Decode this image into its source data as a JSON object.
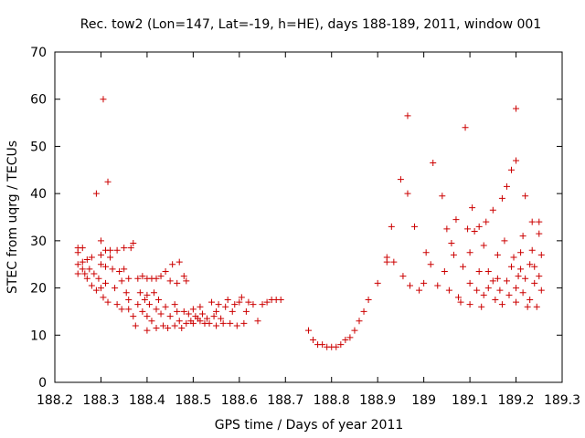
{
  "chart_data": {
    "type": "scatter",
    "title": "Rec. tow2 (Lon=147, Lat=-19, h=HE), days 188-189, 2011, window 001",
    "xlabel": "GPS time / Days of year 2011",
    "ylabel": "STEC from uqrg / TECUs",
    "xlim": [
      188.2,
      189.3
    ],
    "ylim": [
      0,
      70
    ],
    "xticks": [
      188.2,
      188.3,
      188.4,
      188.5,
      188.6,
      188.7,
      188.8,
      188.9,
      189.0,
      189.1,
      189.2,
      189.3
    ],
    "xtick_labels": [
      "188.2",
      "188.3",
      "188.4",
      "188.5",
      "188.6",
      "188.7",
      "188.8",
      "188.9",
      "189",
      "189.1",
      "189.2",
      "189.3"
    ],
    "yticks": [
      0,
      10,
      20,
      30,
      40,
      50,
      60,
      70
    ],
    "ytick_labels": [
      "0",
      "10",
      "20",
      "30",
      "40",
      "50",
      "60",
      "70"
    ],
    "grid": false,
    "legend": false,
    "marker": "+",
    "colors": {
      "points": "#cc0000",
      "axes": "#000000"
    },
    "series": [
      {
        "points": [
          [
            188.25,
            28.5
          ],
          [
            188.25,
            27.5
          ],
          [
            188.25,
            25.0
          ],
          [
            188.25,
            23.0
          ],
          [
            188.26,
            28.5
          ],
          [
            188.26,
            24.0
          ],
          [
            188.26,
            25.5
          ],
          [
            188.265,
            23.0
          ],
          [
            188.27,
            26.0
          ],
          [
            188.27,
            22.0
          ],
          [
            188.275,
            24.0
          ],
          [
            188.28,
            26.5
          ],
          [
            188.28,
            20.5
          ],
          [
            188.285,
            23.0
          ],
          [
            188.29,
            40.0
          ],
          [
            188.29,
            19.5
          ],
          [
            188.295,
            22.0
          ],
          [
            188.3,
            27.0
          ],
          [
            188.3,
            25.0
          ],
          [
            188.3,
            30.0
          ],
          [
            188.3,
            20.0
          ],
          [
            188.305,
            60.0
          ],
          [
            188.305,
            18.0
          ],
          [
            188.31,
            28.0
          ],
          [
            188.31,
            24.5
          ],
          [
            188.31,
            21.0
          ],
          [
            188.315,
            42.5
          ],
          [
            188.315,
            17.0
          ],
          [
            188.32,
            28.0
          ],
          [
            188.32,
            26.5
          ],
          [
            188.325,
            24.0
          ],
          [
            188.33,
            20.0
          ],
          [
            188.335,
            16.5
          ],
          [
            188.335,
            28.0
          ],
          [
            188.34,
            23.5
          ],
          [
            188.345,
            15.5
          ],
          [
            188.345,
            21.5
          ],
          [
            188.35,
            28.5
          ],
          [
            188.35,
            24.0
          ],
          [
            188.355,
            19.0
          ],
          [
            188.36,
            17.5
          ],
          [
            188.36,
            15.5
          ],
          [
            188.36,
            22.0
          ],
          [
            188.365,
            28.5
          ],
          [
            188.37,
            29.5
          ],
          [
            188.37,
            14.0
          ],
          [
            188.375,
            12.0
          ],
          [
            188.38,
            22.0
          ],
          [
            188.38,
            16.5
          ],
          [
            188.385,
            19.0
          ],
          [
            188.39,
            15.0
          ],
          [
            188.39,
            22.5
          ],
          [
            188.395,
            17.5
          ],
          [
            188.4,
            22.0
          ],
          [
            188.4,
            18.5
          ],
          [
            188.4,
            11.0
          ],
          [
            188.4,
            14.0
          ],
          [
            188.405,
            16.5
          ],
          [
            188.41,
            22.0
          ],
          [
            188.41,
            13.0
          ],
          [
            188.415,
            19.0
          ],
          [
            188.42,
            15.5
          ],
          [
            188.42,
            11.5
          ],
          [
            188.42,
            22.0
          ],
          [
            188.425,
            17.5
          ],
          [
            188.43,
            22.5
          ],
          [
            188.43,
            14.5
          ],
          [
            188.435,
            12.0
          ],
          [
            188.44,
            16.0
          ],
          [
            188.44,
            23.5
          ],
          [
            188.445,
            11.5
          ],
          [
            188.45,
            21.5
          ],
          [
            188.45,
            14.0
          ],
          [
            188.455,
            25.0
          ],
          [
            188.46,
            16.5
          ],
          [
            188.46,
            12.0
          ],
          [
            188.465,
            21.0
          ],
          [
            188.465,
            15.0
          ],
          [
            188.47,
            25.5
          ],
          [
            188.47,
            13.0
          ],
          [
            188.475,
            11.5
          ],
          [
            188.48,
            22.5
          ],
          [
            188.48,
            15.0
          ],
          [
            188.485,
            21.5
          ],
          [
            188.485,
            12.5
          ],
          [
            188.49,
            14.5
          ],
          [
            188.495,
            13.0
          ],
          [
            188.5,
            15.5
          ],
          [
            188.5,
            12.5
          ],
          [
            188.505,
            14.0
          ],
          [
            188.51,
            13.5
          ],
          [
            188.515,
            16.0
          ],
          [
            188.515,
            13.0
          ],
          [
            188.52,
            14.5
          ],
          [
            188.525,
            12.5
          ],
          [
            188.53,
            13.5
          ],
          [
            188.535,
            12.5
          ],
          [
            188.54,
            17.0
          ],
          [
            188.545,
            14.0
          ],
          [
            188.55,
            12.0
          ],
          [
            188.55,
            15.0
          ],
          [
            188.555,
            16.5
          ],
          [
            188.56,
            13.5
          ],
          [
            188.565,
            12.5
          ],
          [
            188.57,
            16.0
          ],
          [
            188.575,
            17.5
          ],
          [
            188.58,
            12.5
          ],
          [
            188.585,
            15.0
          ],
          [
            188.59,
            16.5
          ],
          [
            188.595,
            12.0
          ],
          [
            188.6,
            17.0
          ],
          [
            188.605,
            18.0
          ],
          [
            188.61,
            12.5
          ],
          [
            188.615,
            15.0
          ],
          [
            188.62,
            17.0
          ],
          [
            188.63,
            16.5
          ],
          [
            188.64,
            13.0
          ],
          [
            188.65,
            16.5
          ],
          [
            188.66,
            17.0
          ],
          [
            188.67,
            17.5
          ],
          [
            188.68,
            17.5
          ],
          [
            188.69,
            17.5
          ],
          [
            188.75,
            11.0
          ],
          [
            188.76,
            9.0
          ],
          [
            188.77,
            8.0
          ],
          [
            188.78,
            8.0
          ],
          [
            188.79,
            7.5
          ],
          [
            188.8,
            7.5
          ],
          [
            188.81,
            7.5
          ],
          [
            188.82,
            8.0
          ],
          [
            188.83,
            9.0
          ],
          [
            188.84,
            9.5
          ],
          [
            188.85,
            11.0
          ],
          [
            188.86,
            13.0
          ],
          [
            188.87,
            15.0
          ],
          [
            188.88,
            17.5
          ],
          [
            188.9,
            21.0
          ],
          [
            188.92,
            26.5
          ],
          [
            188.92,
            25.5
          ],
          [
            188.93,
            33.0
          ],
          [
            188.935,
            25.5
          ],
          [
            188.95,
            43.0
          ],
          [
            188.955,
            22.5
          ],
          [
            188.965,
            40.0
          ],
          [
            188.965,
            56.5
          ],
          [
            188.97,
            20.5
          ],
          [
            188.98,
            33.0
          ],
          [
            188.99,
            19.5
          ],
          [
            189.0,
            21.0
          ],
          [
            189.005,
            27.5
          ],
          [
            189.015,
            25.0
          ],
          [
            189.02,
            46.5
          ],
          [
            189.03,
            20.5
          ],
          [
            189.04,
            39.5
          ],
          [
            189.045,
            23.5
          ],
          [
            189.05,
            32.5
          ],
          [
            189.055,
            19.5
          ],
          [
            189.06,
            29.5
          ],
          [
            189.065,
            27.0
          ],
          [
            189.07,
            34.5
          ],
          [
            189.075,
            18.0
          ],
          [
            189.08,
            17.0
          ],
          [
            189.085,
            24.5
          ],
          [
            189.09,
            54.0
          ],
          [
            189.095,
            32.5
          ],
          [
            189.1,
            16.5
          ],
          [
            189.1,
            27.5
          ],
          [
            189.1,
            21.0
          ],
          [
            189.105,
            37.0
          ],
          [
            189.11,
            32.0
          ],
          [
            189.115,
            19.5
          ],
          [
            189.12,
            23.5
          ],
          [
            189.12,
            33.0
          ],
          [
            189.125,
            16.0
          ],
          [
            189.13,
            18.5
          ],
          [
            189.13,
            29.0
          ],
          [
            189.135,
            34.0
          ],
          [
            189.14,
            20.0
          ],
          [
            189.14,
            23.5
          ],
          [
            189.15,
            21.5
          ],
          [
            189.15,
            36.5
          ],
          [
            189.155,
            17.5
          ],
          [
            189.16,
            22.0
          ],
          [
            189.16,
            27.0
          ],
          [
            189.165,
            19.5
          ],
          [
            189.17,
            39.0
          ],
          [
            189.17,
            16.5
          ],
          [
            189.175,
            30.0
          ],
          [
            189.18,
            41.5
          ],
          [
            189.18,
            21.5
          ],
          [
            189.185,
            18.5
          ],
          [
            189.19,
            45.0
          ],
          [
            189.19,
            24.5
          ],
          [
            189.195,
            26.5
          ],
          [
            189.2,
            47.0
          ],
          [
            189.2,
            58.0
          ],
          [
            189.2,
            20.0
          ],
          [
            189.2,
            17.0
          ],
          [
            189.205,
            22.5
          ],
          [
            189.21,
            27.5
          ],
          [
            189.21,
            24.0
          ],
          [
            189.215,
            31.0
          ],
          [
            189.215,
            19.0
          ],
          [
            189.22,
            39.5
          ],
          [
            189.22,
            22.0
          ],
          [
            189.225,
            16.0
          ],
          [
            189.23,
            25.0
          ],
          [
            189.23,
            17.5
          ],
          [
            189.235,
            34.0
          ],
          [
            189.235,
            28.0
          ],
          [
            189.24,
            21.0
          ],
          [
            189.24,
            24.5
          ],
          [
            189.245,
            16.0
          ],
          [
            189.25,
            31.5
          ],
          [
            189.25,
            34.0
          ],
          [
            189.25,
            22.5
          ],
          [
            189.255,
            27.0
          ],
          [
            189.255,
            19.5
          ]
        ]
      }
    ]
  }
}
